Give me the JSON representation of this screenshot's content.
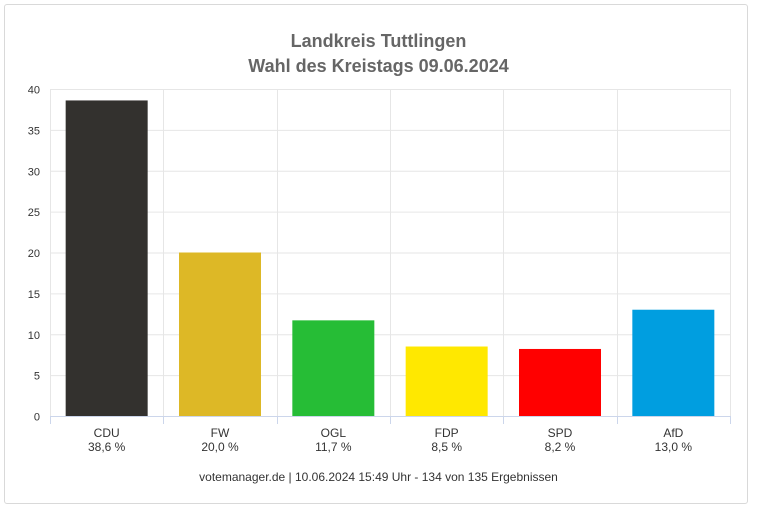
{
  "chart_data": {
    "type": "bar",
    "title": "Landkreis Tuttlingen",
    "subtitle": "Wahl des Kreistags 09.06.2024",
    "categories": [
      "CDU",
      "FW",
      "OGL",
      "FDP",
      "SPD",
      "AfD"
    ],
    "value_labels": [
      "38,6 %",
      "20,0 %",
      "11,7 %",
      "8,5 %",
      "8,2 %",
      "13,0 %"
    ],
    "values": [
      38.6,
      20.0,
      11.7,
      8.5,
      8.2,
      13.0
    ],
    "colors": [
      "#33312e",
      "#ddb826",
      "#26bd36",
      "#ffe800",
      "#ff0000",
      "#009ee0"
    ],
    "ylim": [
      0,
      40
    ],
    "yticks": [
      "0",
      "5",
      "10",
      "15",
      "20",
      "25",
      "30",
      "35",
      "40"
    ],
    "grid": true,
    "xlabel": "",
    "ylabel": ""
  },
  "footer": "votemanager.de | 10.06.2024 15:49 Uhr - 134 von 135 Ergebnissen"
}
